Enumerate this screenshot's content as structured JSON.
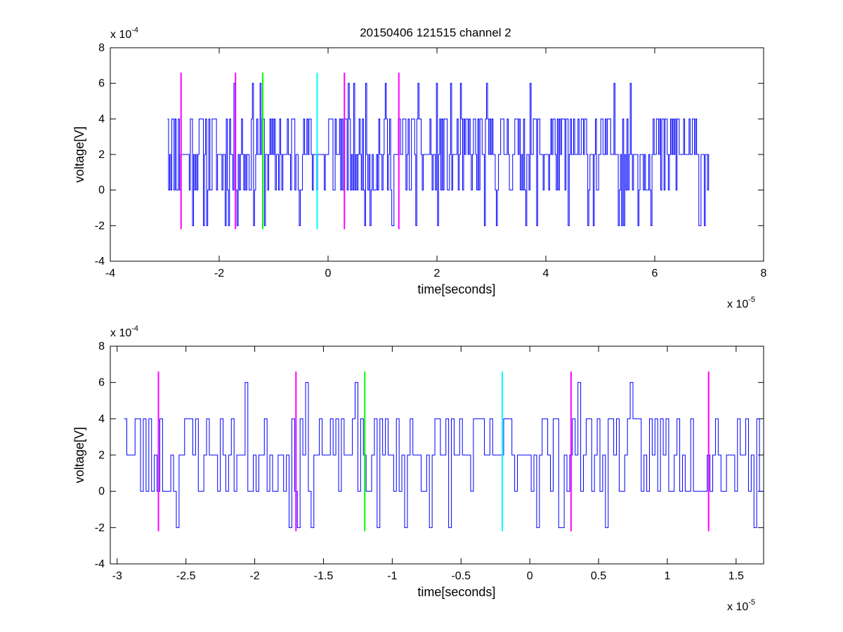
{
  "figure": {
    "title": "20150406 121515 channel 2"
  },
  "chart_data": [
    {
      "type": "line",
      "xlabel": "time[seconds]",
      "ylabel": "voltage[V]",
      "x_exponent_label": "x 10",
      "x_exponent": "-5",
      "y_exponent_label": "x 10",
      "y_exponent": "-4",
      "xlim": [
        -4,
        8
      ],
      "ylim": [
        -4,
        8
      ],
      "xticks": [
        -4,
        -2,
        0,
        2,
        4,
        6,
        8
      ],
      "yticks": [
        -4,
        -2,
        0,
        2,
        4,
        6,
        8
      ],
      "xtick_labels": [
        "-4",
        "-2",
        "0",
        "2",
        "4",
        "6",
        "8"
      ],
      "ytick_labels": [
        "-4",
        "-2",
        "0",
        "2",
        "4",
        "6",
        "8"
      ],
      "signal": {
        "color": "#0000ff",
        "x_start": -2.95,
        "x_end": 7.0,
        "sample_step": 0.02,
        "levels": [
          -2,
          0,
          2,
          4,
          6
        ],
        "level_weights": [
          0.05,
          0.24,
          0.38,
          0.3,
          0.03
        ],
        "seed": 11
      },
      "markers": [
        {
          "x": -2.7,
          "y0": -2.2,
          "y1": 6.6,
          "color": "#ff00ff"
        },
        {
          "x": -1.7,
          "y0": -2.2,
          "y1": 6.6,
          "color": "#ff00ff"
        },
        {
          "x": -1.2,
          "y0": -2.2,
          "y1": 6.6,
          "color": "#00ff00"
        },
        {
          "x": -0.2,
          "y0": -2.2,
          "y1": 6.6,
          "color": "#00ffff"
        },
        {
          "x": 0.3,
          "y0": -2.2,
          "y1": 6.6,
          "color": "#ff00ff"
        },
        {
          "x": 1.3,
          "y0": -2.2,
          "y1": 6.6,
          "color": "#ff00ff"
        }
      ]
    },
    {
      "type": "line",
      "xlabel": "time[seconds]",
      "ylabel": "voltage[V]",
      "x_exponent_label": "x 10",
      "x_exponent": "-5",
      "y_exponent_label": "x 10",
      "y_exponent": "-4",
      "xlim": [
        -3.05,
        1.7
      ],
      "ylim": [
        -4,
        8
      ],
      "xticks": [
        -3,
        -2.5,
        -2,
        -1.5,
        -1,
        -0.5,
        0,
        0.5,
        1,
        1.5
      ],
      "yticks": [
        -4,
        -2,
        0,
        2,
        4,
        6,
        8
      ],
      "xtick_labels": [
        "-3",
        "-2.5",
        "-2",
        "-1.5",
        "-1",
        "-0.5",
        "0",
        "0.5",
        "1",
        "1.5"
      ],
      "ytick_labels": [
        "-4",
        "-2",
        "0",
        "2",
        "4",
        "6",
        "8"
      ],
      "signal": {
        "color": "#0000ff",
        "x_start": -2.95,
        "x_end": 1.7,
        "sample_step": 0.02,
        "levels": [
          -2,
          0,
          2,
          4,
          6
        ],
        "level_weights": [
          0.05,
          0.24,
          0.38,
          0.3,
          0.03
        ],
        "seed": 23
      },
      "markers": [
        {
          "x": -2.7,
          "y0": -2.2,
          "y1": 6.6,
          "color": "#ff00ff"
        },
        {
          "x": -1.7,
          "y0": -2.2,
          "y1": 6.6,
          "color": "#ff00ff"
        },
        {
          "x": -1.2,
          "y0": -2.2,
          "y1": 6.6,
          "color": "#00ff00"
        },
        {
          "x": -0.2,
          "y0": -2.2,
          "y1": 6.6,
          "color": "#00ffff"
        },
        {
          "x": 0.3,
          "y0": -2.2,
          "y1": 6.6,
          "color": "#ff00ff"
        },
        {
          "x": 1.3,
          "y0": -2.2,
          "y1": 6.6,
          "color": "#ff00ff"
        }
      ]
    }
  ]
}
